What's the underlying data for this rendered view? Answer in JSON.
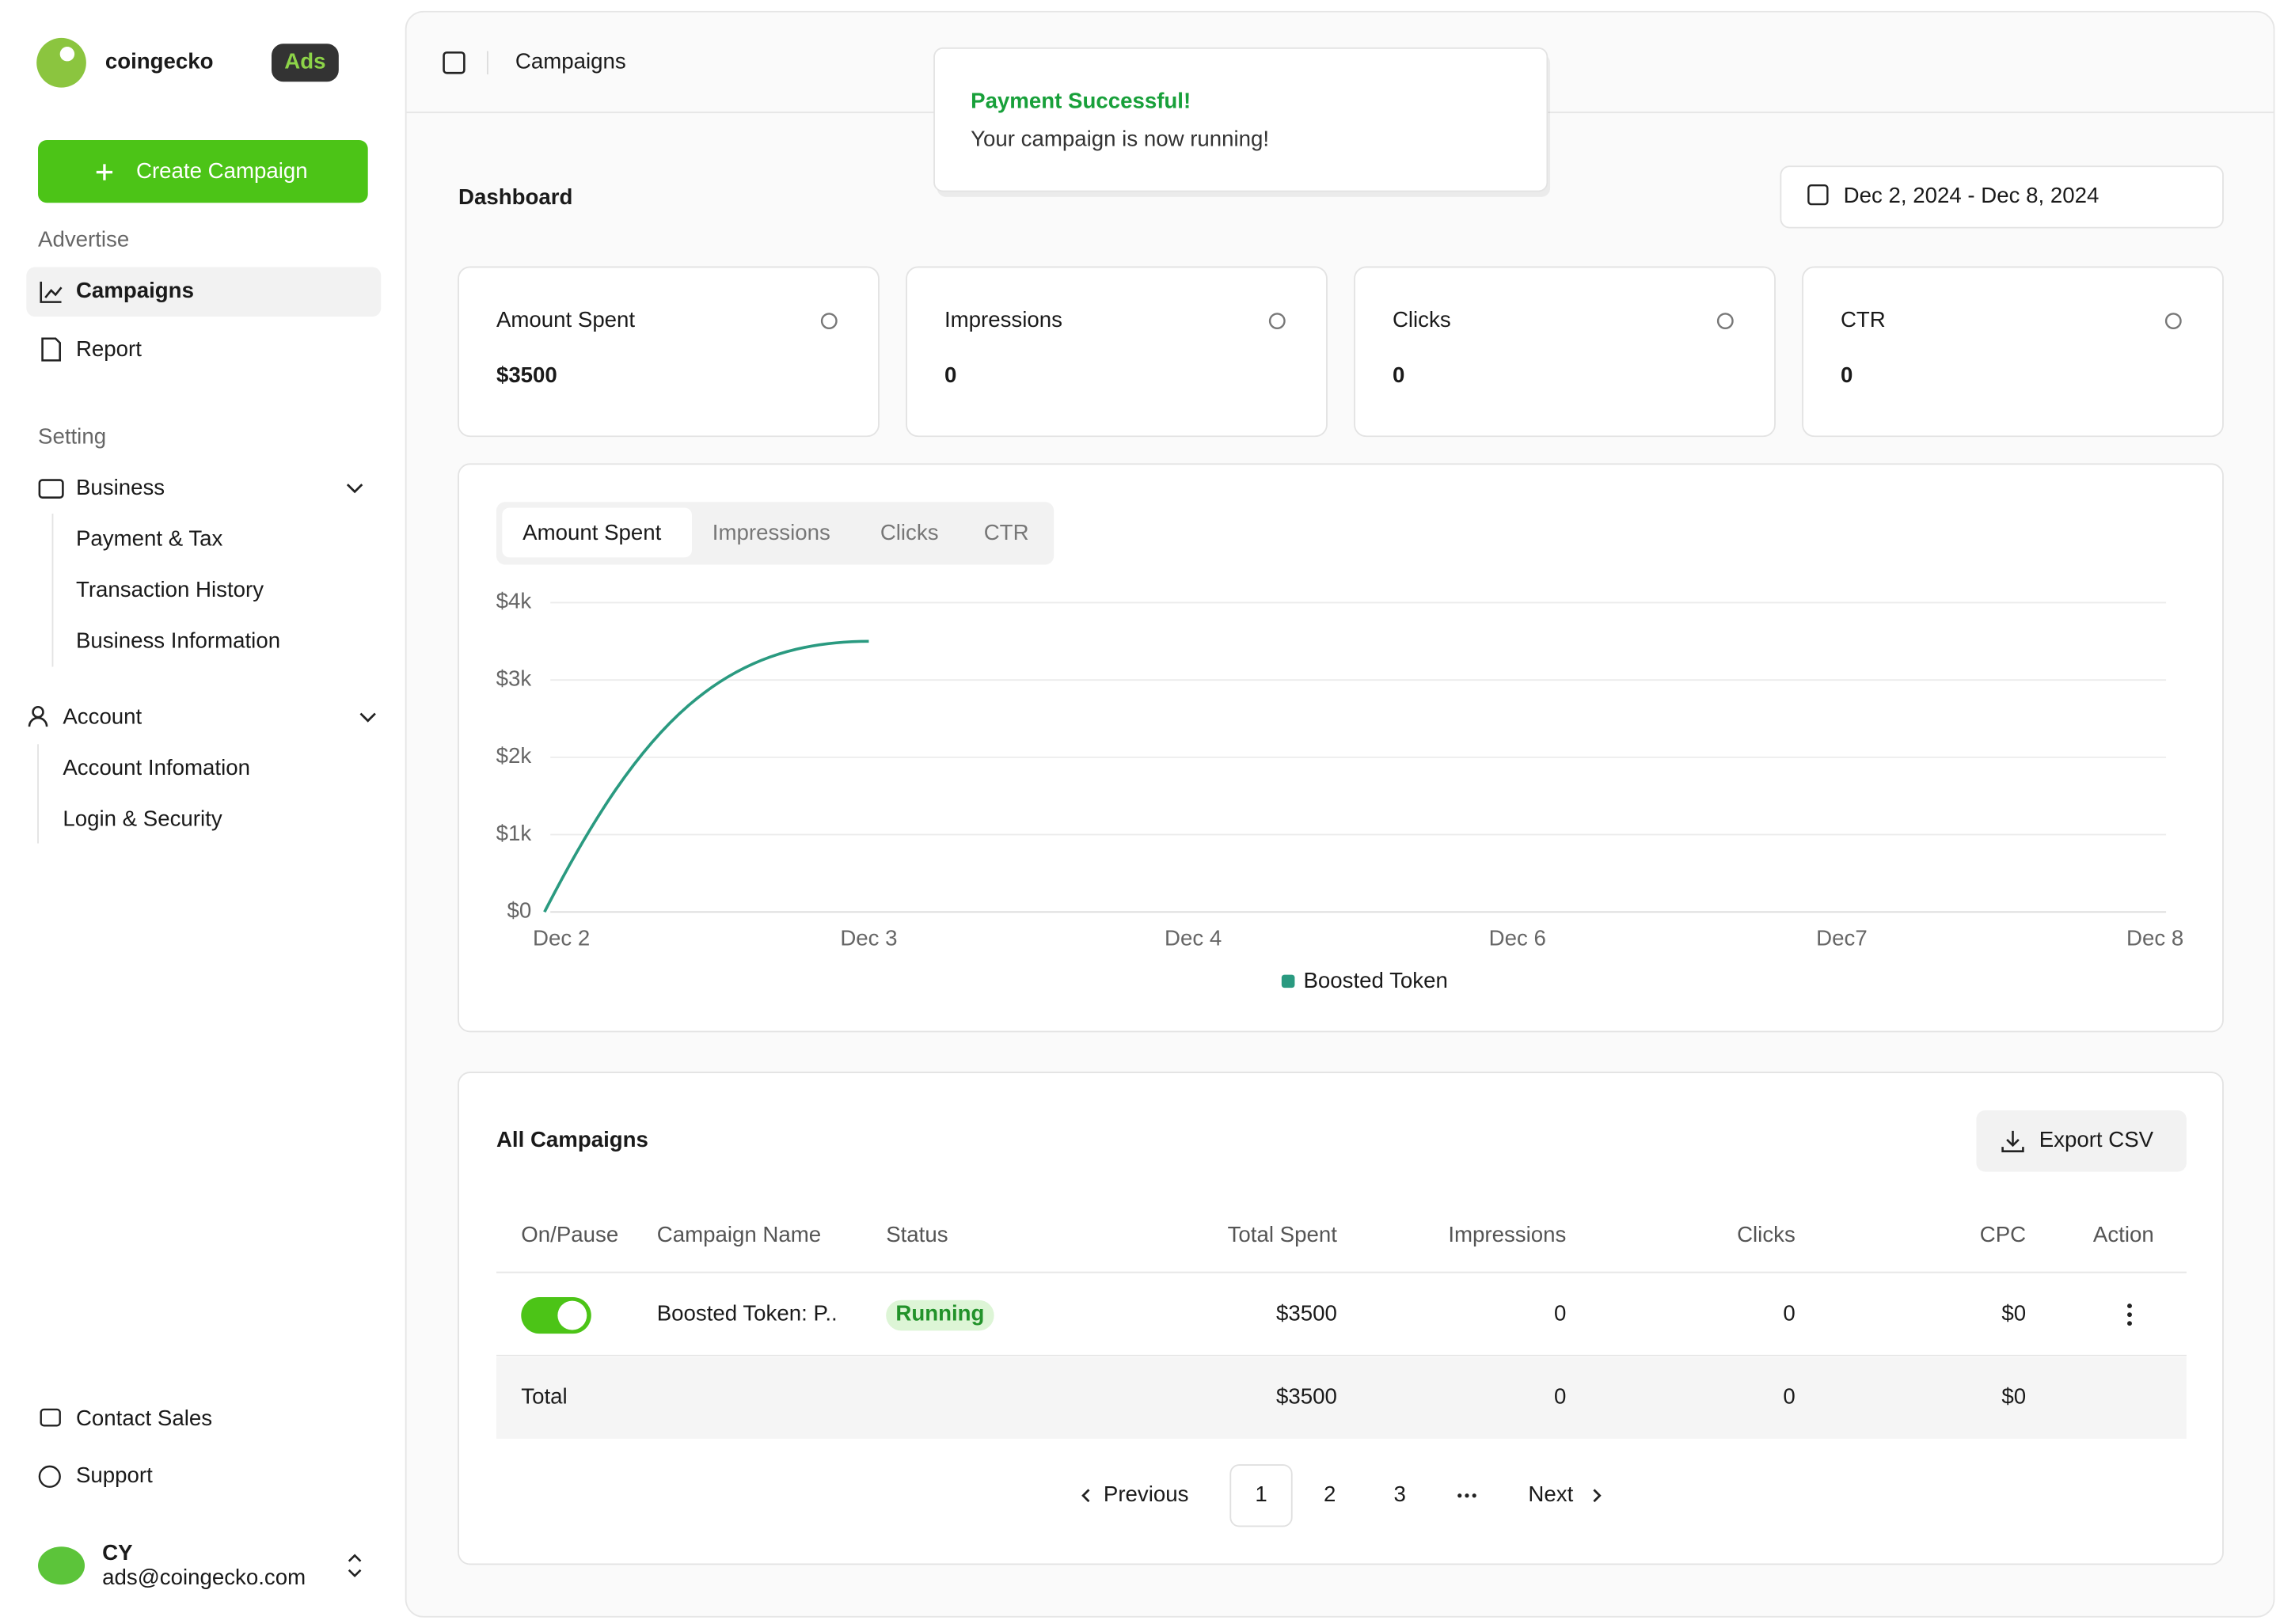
{
  "sidebar": {
    "logo_text": "coingecko",
    "logo_badge": "Ads",
    "create_button": "Create Campaign",
    "advertise_label": "Advertise",
    "advertise_items": [
      "Campaigns",
      "Report"
    ],
    "setting_label": "Setting",
    "business": "Business",
    "business_items": [
      "Payment & Tax",
      "Transaction History",
      "Business Information"
    ],
    "account": "Account",
    "account_items": [
      "Account Infomation",
      "Login & Security"
    ],
    "footer_items": [
      "Contact Sales",
      "Support"
    ],
    "user": {
      "initials": "CY",
      "email": "ads@coingecko.com"
    }
  },
  "header": {
    "breadcrumb": "Campaigns"
  },
  "toast": {
    "title": "Payment Successful!",
    "message": "Your campaign is now running!"
  },
  "page_title": "Dashboard",
  "date_range": "Dec 2, 2024 - Dec 8, 2024",
  "stats": [
    {
      "label": "Amount Spent",
      "value": "$3500"
    },
    {
      "label": "Impressions",
      "value": "0"
    },
    {
      "label": "Clicks",
      "value": "0"
    },
    {
      "label": "CTR",
      "value": "0"
    }
  ],
  "chart_tabs": [
    "Amount Spent",
    "Impressions",
    "Clicks",
    "CTR"
  ],
  "chart_data": {
    "type": "line",
    "categories": [
      "Dec 2",
      "Dec 3",
      "Dec 4",
      "Dec 6",
      "Dec7",
      "Dec 8"
    ],
    "series": [
      {
        "name": "Boosted Token",
        "color": "#2a9a80",
        "values": [
          0,
          3500,
          null,
          null,
          null,
          null
        ]
      }
    ],
    "ylim": [
      0,
      4000
    ],
    "yticks": [
      {
        "value": 0,
        "label": "$0"
      },
      {
        "value": 1000,
        "label": "$1k"
      },
      {
        "value": 2000,
        "label": "$2k"
      },
      {
        "value": 3000,
        "label": "$3k"
      },
      {
        "value": 4000,
        "label": "$4k"
      }
    ],
    "grid": true
  },
  "campaigns": {
    "title": "All Campaigns",
    "export_button": "Export CSV",
    "columns": [
      "On/Pause",
      "Campaign Name",
      "Status",
      "Total Spent",
      "Impressions",
      "Clicks",
      "CPC",
      "Action"
    ],
    "rows": [
      [
        "Boosted Token: P..",
        "Running",
        "$3500",
        "0",
        "0",
        "$0"
      ]
    ],
    "total": [
      "Total",
      "$3500",
      "0",
      "0",
      "$0"
    ]
  },
  "pagination": {
    "previous": "Previous",
    "pages": [
      "1",
      "2",
      "3"
    ],
    "next": "Next"
  }
}
